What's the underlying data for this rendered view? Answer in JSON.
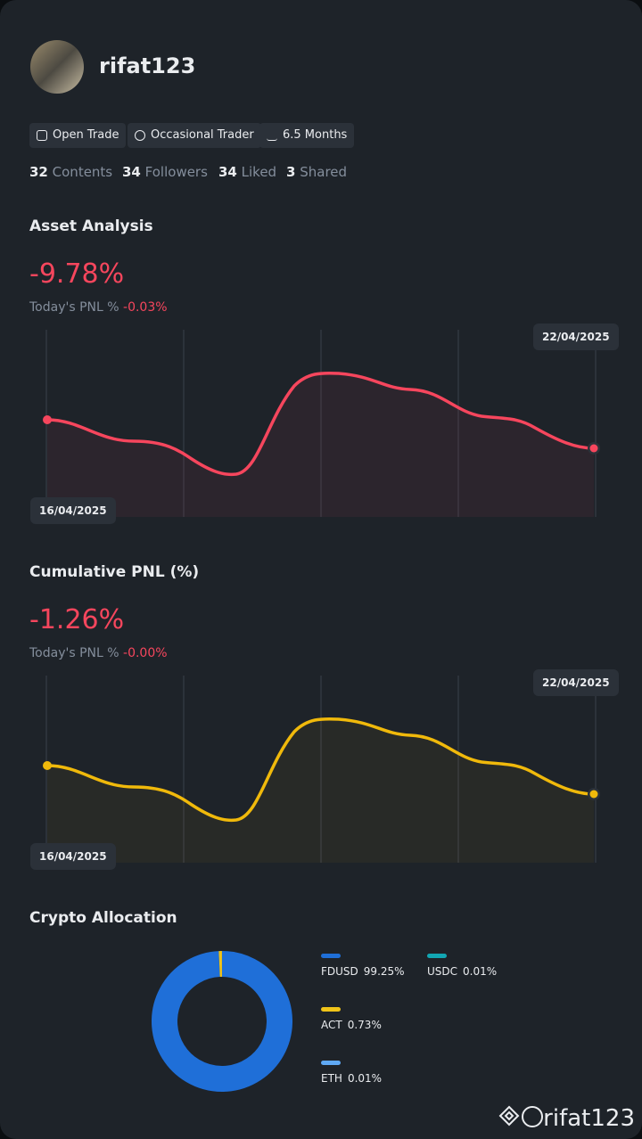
{
  "profile": {
    "username": "rifat123",
    "badges": [
      "Open Trade",
      "Occasional Trader",
      "6.5 Months"
    ],
    "stats": [
      {
        "value": 32,
        "label": "Contents"
      },
      {
        "value": 34,
        "label": "Followers"
      },
      {
        "value": 34,
        "label": "Liked"
      },
      {
        "value": 3,
        "label": "Shared"
      }
    ]
  },
  "asset_analysis": {
    "title": "Asset Analysis",
    "value": "-9.78%",
    "pnl_label": "Today's PNL %",
    "pnl_value": "-0.03%",
    "start_date": "16/04/2025",
    "end_date": "22/04/2025"
  },
  "cumulative_pnl": {
    "title": "Cumulative PNL (%)",
    "value": "-1.26%",
    "pnl_label": "Today's PNL %",
    "pnl_value": "-0.00%",
    "start_date": "16/04/2025",
    "end_date": "22/04/2025"
  },
  "crypto_allocation": {
    "title": "Crypto Allocation",
    "items": [
      {
        "name": "FDUSD",
        "value": 99.25,
        "label": "99.25%",
        "color": "#1f6fd8"
      },
      {
        "name": "USDC",
        "value": 0.01,
        "label": "0.01%",
        "color": "#12a6b3"
      },
      {
        "name": "ACT",
        "value": 0.73,
        "label": "0.73%",
        "color": "#f0c419"
      },
      {
        "name": "ETH",
        "value": 0.01,
        "label": "0.01%",
        "color": "#5fa9f5"
      }
    ]
  },
  "watermark": "rifat123"
}
